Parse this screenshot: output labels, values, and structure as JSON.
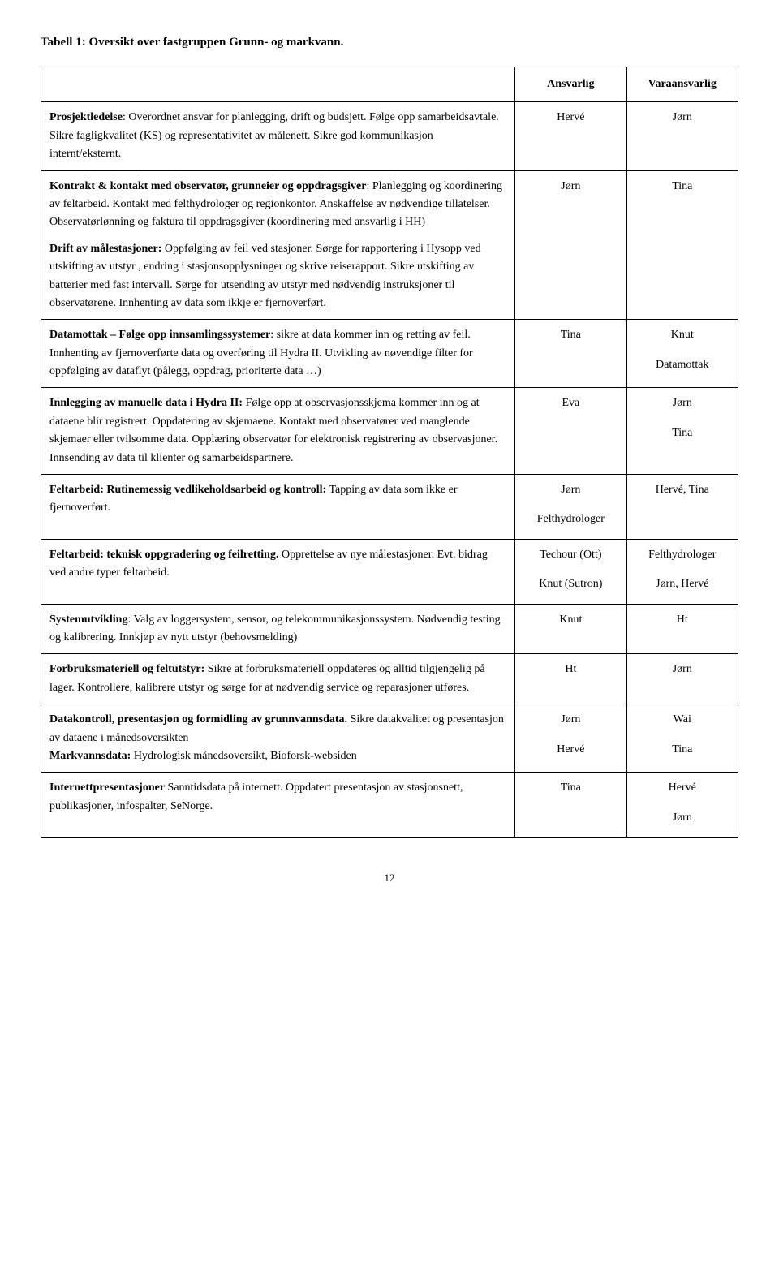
{
  "title": "Tabell 1: Oversikt over fastgruppen Grunn- og markvann.",
  "headers": {
    "c2": "Ansvarlig",
    "c3": "Varaansvarlig"
  },
  "rows": [
    {
      "desc": [
        {
          "b": "Prosjektledelse",
          "rest": ": Overordnet ansvar for planlegging, drift og budsjett. Følge opp samarbeidsavtale. Sikre fagligkvalitet (KS) og representativitet av målenett. Sikre god kommunikasjon internt/eksternt."
        }
      ],
      "c2": [
        "Hervé"
      ],
      "c3": [
        "Jørn"
      ]
    },
    {
      "desc": [
        {
          "b": "Kontrakt & kontakt med observatør, grunneier og oppdragsgiver",
          "rest": ": Planlegging og koordinering av feltarbeid. Kontakt med felthydrologer og regionkontor. Anskaffelse av nødvendige tillatelser. Observatørlønning og faktura til oppdragsgiver (koordinering med ansvarlig i HH)"
        },
        {
          "blank": true
        },
        {
          "b": "Drift av målestasjoner:",
          "rest": " Oppfølging av feil ved stasjoner. Sørge for rapportering i Hysopp ved utskifting av utstyr , endring i stasjonsopplysninger og skrive reiserapport. Sikre utskifting av batterier med fast intervall. Sørge for utsending av utstyr med nødvendig instruksjoner til observatørene. Innhenting av data som ikkje er fjernoverført."
        }
      ],
      "c2": [
        "Jørn"
      ],
      "c3": [
        "Tina"
      ]
    },
    {
      "desc": [
        {
          "b": "Datamottak – Følge opp innsamlingssystemer",
          "rest": ": sikre at data kommer inn og retting av feil. Innhenting av fjernoverførte data og overføring til Hydra II. Utvikling av nøvendige filter for oppfølging av dataflyt (pålegg, oppdrag, prioriterte data …)"
        }
      ],
      "c2": [
        "Tina"
      ],
      "c3": [
        "Knut",
        "Datamottak"
      ]
    },
    {
      "desc": [
        {
          "b": "Innlegging av manuelle data i Hydra II:",
          "rest": " Følge opp at observasjonsskjema kommer inn og at dataene blir registrert. Oppdatering av skjemaene. Kontakt med observatører ved manglende skjemaer eller tvilsomme data. Opplæring observatør for elektronisk registrering av observasjoner. Innsending av data til klienter og samarbeidspartnere."
        }
      ],
      "c2": [
        "Eva"
      ],
      "c3": [
        "Jørn",
        "Tina"
      ]
    },
    {
      "desc": [
        {
          "b": "Feltarbeid: Rutinemessig vedlikeholdsarbeid og kontroll:",
          "rest": " Tapping av data som ikke er fjernoverført."
        }
      ],
      "c2": [
        "Jørn",
        "Felthydrologer"
      ],
      "c3": [
        "Hervé, Tina"
      ]
    },
    {
      "desc": [
        {
          "b": "Feltarbeid: teknisk oppgradering og feilretting.",
          "rest": " Opprettelse av nye målestasjoner. Evt. bidrag ved andre typer feltarbeid."
        }
      ],
      "c2": [
        "Techour (Ott)",
        "Knut (Sutron)"
      ],
      "c3": [
        "Felthydrologer",
        "Jørn, Hervé"
      ]
    },
    {
      "desc": [
        {
          "b": "Systemutvikling",
          "rest": ": Valg av loggersystem, sensor, og telekommunikasjonssystem. Nødvendig testing og kalibrering. Innkjøp av nytt utstyr (behovsmelding)"
        }
      ],
      "c2": [
        "Knut"
      ],
      "c3": [
        "Ht"
      ]
    },
    {
      "desc": [
        {
          "b": "Forbruksmateriell og feltutstyr:",
          "rest": " Sikre at forbruksmateriell oppdateres og alltid tilgjengelig på lager. Kontrollere, kalibrere utstyr og sørge for at nødvendig service og reparasjoner utføres."
        }
      ],
      "c2": [
        "Ht"
      ],
      "c3": [
        "Jørn"
      ]
    },
    {
      "desc": [
        {
          "b": "Datakontroll, presentasjon og formidling av grunnvannsdata.",
          "rest": " Sikre datakvalitet og presentasjon av dataene i månedsoversikten"
        },
        {
          "b": "Markvannsdata:",
          "rest": " Hydrologisk månedsoversikt, Bioforsk-websiden"
        }
      ],
      "c2": [
        "Jørn",
        "Hervé"
      ],
      "c3": [
        "Wai",
        "Tina"
      ]
    },
    {
      "desc": [
        {
          "b": "Internettpresentasjoner",
          "rest": " Sanntidsdata på internett. Oppdatert presentasjon av stasjonsnett, publikasjoner, infospalter, SeNorge."
        }
      ],
      "c2": [
        "Tina"
      ],
      "c3": [
        "Hervé",
        "Jørn"
      ]
    }
  ],
  "pageNumber": "12"
}
